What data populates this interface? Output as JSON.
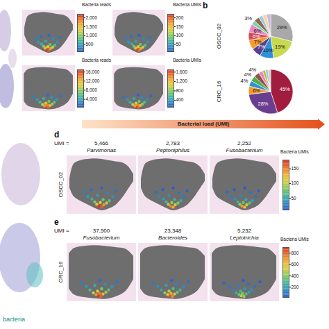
{
  "chart_data": [
    {
      "type": "heatmap_grid",
      "maps": [
        {
          "colorbar_label": "Bacteria reads",
          "colorbar_range": [
            100,
            2200
          ],
          "colorbar_ticks": [
            500,
            {
              "value": 1000,
              "label": "1,000"
            },
            {
              "value": 1500,
              "label": "1,500"
            },
            {
              "value": 2000,
              "label": "2,000"
            }
          ],
          "cells": [
            [
              46,
              86,
              2150
            ],
            [
              50,
              88,
              1950
            ],
            [
              53,
              84,
              1700
            ],
            [
              43,
              83,
              1500
            ],
            [
              57,
              81,
              1250
            ],
            [
              40,
              79,
              1000
            ],
            [
              48,
              80,
              1400
            ],
            [
              61,
              77,
              800
            ],
            [
              36,
              74,
              650
            ],
            [
              52,
              75,
              900
            ],
            [
              30,
              70,
              450
            ],
            [
              66,
              70,
              420
            ],
            [
              44,
              68,
              550
            ],
            [
              25,
              62,
              300
            ],
            [
              58,
              63,
              380
            ],
            [
              70,
              60,
              260
            ],
            [
              35,
              58,
              240
            ],
            [
              50,
              55,
              200
            ]
          ]
        },
        {
          "colorbar_label": "Bacteria UMIs",
          "colorbar_range": [
            10,
            220
          ],
          "colorbar_ticks": [
            50,
            100,
            150,
            200
          ],
          "cells": [
            [
              46,
              86,
              210
            ],
            [
              50,
              88,
              190
            ],
            [
              53,
              84,
              165
            ],
            [
              43,
              83,
              150
            ],
            [
              57,
              81,
              120
            ],
            [
              40,
              79,
              95
            ],
            [
              48,
              80,
              140
            ],
            [
              61,
              77,
              80
            ],
            [
              36,
              74,
              62
            ],
            [
              52,
              75,
              88
            ],
            [
              30,
              70,
              45
            ],
            [
              66,
              70,
              40
            ],
            [
              44,
              68,
              52
            ],
            [
              25,
              62,
              30
            ],
            [
              58,
              63,
              36
            ],
            [
              70,
              60,
              25
            ],
            [
              35,
              58,
              22
            ],
            [
              50,
              55,
              18
            ]
          ]
        }
      ]
    },
    {
      "type": "heatmap_grid",
      "maps": [
        {
          "colorbar_label": "Bacteria reads",
          "colorbar_range": [
            500,
            17000
          ],
          "colorbar_ticks": [
            {
              "value": 4000,
              "label": "4,000"
            },
            {
              "value": 8000,
              "label": "8,000"
            },
            {
              "value": 12000,
              "label": "12,000"
            },
            {
              "value": 16000,
              "label": "16,000"
            }
          ],
          "cells": [
            [
              45,
              90,
              16500
            ],
            [
              49,
              91,
              15000
            ],
            [
              42,
              88,
              13200
            ],
            [
              52,
              87,
              12000
            ],
            [
              47,
              86,
              14000
            ],
            [
              38,
              85,
              9500
            ],
            [
              56,
              84,
              8000
            ],
            [
              44,
              82,
              10500
            ],
            [
              60,
              80,
              6000
            ],
            [
              33,
              80,
              5200
            ],
            [
              50,
              78,
              7000
            ],
            [
              28,
              74,
              3500
            ],
            [
              65,
              74,
              3200
            ],
            [
              40,
              72,
              4500
            ],
            [
              55,
              70,
              3000
            ],
            [
              20,
              68,
              2200
            ],
            [
              72,
              66,
              1800
            ],
            [
              48,
              64,
              1500
            ]
          ]
        },
        {
          "colorbar_label": "Bacteria UMIs",
          "colorbar_range": [
            100,
            1700
          ],
          "colorbar_ticks": [
            400,
            800,
            {
              "value": 1200,
              "label": "1,200"
            },
            {
              "value": 1600,
              "label": "1,600"
            }
          ],
          "cells": [
            [
              45,
              90,
              1650
            ],
            [
              49,
              91,
              1500
            ],
            [
              42,
              88,
              1300
            ],
            [
              52,
              87,
              1180
            ],
            [
              47,
              86,
              1400
            ],
            [
              38,
              85,
              950
            ],
            [
              56,
              84,
              800
            ],
            [
              44,
              82,
              1050
            ],
            [
              60,
              80,
              600
            ],
            [
              33,
              80,
              520
            ],
            [
              50,
              78,
              700
            ],
            [
              28,
              74,
              350
            ],
            [
              65,
              74,
              320
            ],
            [
              40,
              72,
              450
            ],
            [
              55,
              70,
              300
            ],
            [
              20,
              68,
              220
            ],
            [
              72,
              66,
              180
            ],
            [
              48,
              64,
              150
            ]
          ]
        }
      ]
    },
    {
      "type": "pie",
      "panel": "b",
      "title": "OSCC_02",
      "data_labels": true,
      "values": [
        29,
        19,
        10,
        7,
        7,
        6,
        6,
        3,
        4,
        3,
        3,
        3
      ],
      "value_labels": [
        "29%",
        "19%",
        "10%",
        "7%",
        "7%",
        "6%",
        "6%",
        "3%",
        null,
        null,
        null,
        null
      ],
      "colors": [
        "#a9a9a9",
        "#c9d94f",
        "#2f8fd8",
        "#5a3f8e",
        "#f39c2b",
        "#d9475a",
        "#e78ac3",
        "#7fd3a8",
        "#8c6d4f",
        "#9ecae1",
        "#fdd0a2",
        "#c7b8e0"
      ]
    },
    {
      "type": "pie",
      "title": "CRC_16",
      "data_labels": true,
      "values": [
        45,
        28,
        6,
        4,
        4,
        4,
        3,
        2,
        2,
        2
      ],
      "value_labels": [
        "45%",
        "28%",
        "6%",
        "4%",
        "4%",
        "4%",
        null,
        null,
        null,
        null
      ],
      "colors": [
        "#a21d3d",
        "#6a3d8f",
        "#f39c2b",
        "#2f8fd8",
        "#4daf4a",
        "#8c564b",
        "#e78ac3",
        "#bcbd22",
        "#9ecae1",
        "#cccccc"
      ]
    },
    {
      "type": "heatmap_row",
      "panel": "d",
      "row_label": "OSCC_02",
      "umi_label": "UMI =",
      "colorbar_label": "Bacteria UMIs",
      "colorbar_range": [
        10,
        180
      ],
      "colorbar_ticks": [
        50,
        100,
        150
      ],
      "maps": [
        {
          "title": "Parvimonas",
          "umi": {
            "value": 5466,
            "label": "5,466"
          },
          "cells": [
            [
              46,
              86,
              175
            ],
            [
              50,
              88,
              160
            ],
            [
              53,
              84,
              140
            ],
            [
              43,
              83,
              120
            ],
            [
              57,
              81,
              100
            ],
            [
              40,
              79,
              85
            ],
            [
              48,
              80,
              110
            ],
            [
              61,
              77,
              70
            ],
            [
              36,
              74,
              55
            ],
            [
              52,
              75,
              75
            ],
            [
              30,
              70,
              40
            ],
            [
              66,
              70,
              35
            ],
            [
              44,
              68,
              45
            ],
            [
              25,
              62,
              28
            ],
            [
              58,
              63,
              30
            ],
            [
              70,
              60,
              22
            ],
            [
              35,
              58,
              20
            ],
            [
              50,
              55,
              15
            ]
          ]
        },
        {
          "title": "Peptoniphilus",
          "umi": {
            "value": 2783,
            "label": "2,783"
          },
          "cells": [
            [
              46,
              86,
              150
            ],
            [
              50,
              88,
              130
            ],
            [
              53,
              84,
              115
            ],
            [
              43,
              83,
              95
            ],
            [
              57,
              81,
              80
            ],
            [
              40,
              79,
              60
            ],
            [
              48,
              80,
              90
            ],
            [
              61,
              77,
              50
            ],
            [
              36,
              74,
              40
            ],
            [
              52,
              75,
              55
            ],
            [
              30,
              70,
              30
            ],
            [
              66,
              70,
              25
            ],
            [
              44,
              68,
              35
            ],
            [
              25,
              62,
              20
            ],
            [
              58,
              63,
              22
            ],
            [
              70,
              60,
              15
            ],
            [
              35,
              58,
              14
            ],
            [
              50,
              55,
              12
            ]
          ]
        },
        {
          "title": "Fusobacterium",
          "umi": {
            "value": 2252,
            "label": "2,252"
          },
          "cells": [
            [
              46,
              86,
              140
            ],
            [
              50,
              88,
              120
            ],
            [
              53,
              84,
              100
            ],
            [
              43,
              83,
              85
            ],
            [
              57,
              81,
              70
            ],
            [
              40,
              79,
              55
            ],
            [
              48,
              80,
              75
            ],
            [
              61,
              77,
              45
            ],
            [
              36,
              74,
              35
            ],
            [
              52,
              75,
              48
            ],
            [
              30,
              70,
              25
            ],
            [
              66,
              70,
              22
            ],
            [
              44,
              68,
              30
            ],
            [
              25,
              62,
              18
            ],
            [
              58,
              63,
              20
            ],
            [
              70,
              60,
              14
            ],
            [
              35,
              58,
              12
            ],
            [
              50,
              55,
              11
            ]
          ]
        }
      ]
    },
    {
      "type": "heatmap_row",
      "panel": "e",
      "row_label": "CRC_16",
      "umi_label": "UMI =",
      "colorbar_label": "Bacteria UMIs",
      "colorbar_range": [
        20,
        900
      ],
      "colorbar_ticks": [
        200,
        400,
        600,
        800
      ],
      "maps": [
        {
          "title": "Fusobacterium",
          "umi": {
            "value": 37500,
            "label": "37,500"
          },
          "cells": [
            [
              45,
              90,
              880
            ],
            [
              49,
              91,
              800
            ],
            [
              42,
              88,
              700
            ],
            [
              52,
              87,
              620
            ],
            [
              47,
              86,
              740
            ],
            [
              38,
              85,
              500
            ],
            [
              56,
              84,
              420
            ],
            [
              44,
              82,
              560
            ],
            [
              60,
              80,
              320
            ],
            [
              33,
              80,
              280
            ],
            [
              50,
              78,
              380
            ],
            [
              28,
              74,
              180
            ],
            [
              65,
              74,
              170
            ],
            [
              40,
              72,
              240
            ],
            [
              55,
              70,
              150
            ],
            [
              20,
              68,
              110
            ],
            [
              72,
              66,
              90
            ],
            [
              48,
              64,
              70
            ]
          ]
        },
        {
          "title": "Bacteroides",
          "umi": {
            "value": 23348,
            "label": "23,348"
          },
          "cells": [
            [
              45,
              90,
              820
            ],
            [
              49,
              91,
              700
            ],
            [
              42,
              88,
              600
            ],
            [
              52,
              87,
              520
            ],
            [
              47,
              86,
              650
            ],
            [
              38,
              85,
              420
            ],
            [
              56,
              84,
              350
            ],
            [
              44,
              82,
              480
            ],
            [
              60,
              80,
              260
            ],
            [
              33,
              80,
              220
            ],
            [
              50,
              78,
              300
            ],
            [
              28,
              74,
              150
            ],
            [
              65,
              74,
              140
            ],
            [
              40,
              72,
              200
            ],
            [
              55,
              70,
              120
            ],
            [
              20,
              68,
              90
            ],
            [
              72,
              66,
              70
            ],
            [
              48,
              64,
              50
            ]
          ]
        },
        {
          "title": "Leptotrichia",
          "umi": {
            "value": 5232,
            "label": "5,232"
          },
          "cells": [
            [
              45,
              90,
              520
            ],
            [
              49,
              91,
              430
            ],
            [
              42,
              88,
              360
            ],
            [
              52,
              87,
              300
            ],
            [
              47,
              86,
              400
            ],
            [
              38,
              85,
              240
            ],
            [
              56,
              84,
              200
            ],
            [
              44,
              82,
              280
            ],
            [
              60,
              80,
              150
            ],
            [
              33,
              80,
              120
            ],
            [
              50,
              78,
              170
            ],
            [
              28,
              74,
              90
            ],
            [
              65,
              74,
              80
            ],
            [
              40,
              72,
              110
            ],
            [
              55,
              70,
              70
            ],
            [
              20,
              68,
              50
            ],
            [
              72,
              66,
              40
            ],
            [
              48,
              64,
              30
            ]
          ]
        }
      ]
    }
  ],
  "load_arrow": "Bacterial load (UMI)",
  "annotation": "bacteria"
}
